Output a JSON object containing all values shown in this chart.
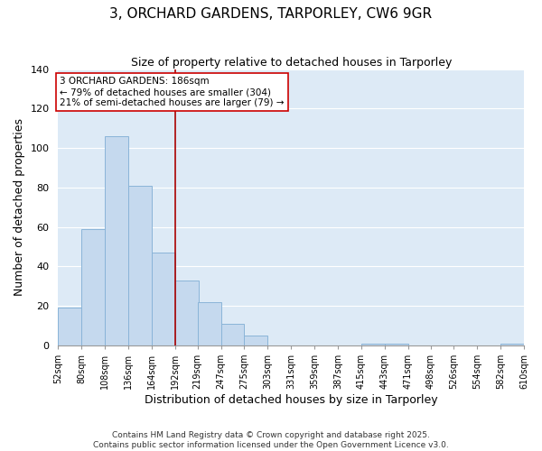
{
  "title": "3, ORCHARD GARDENS, TARPORLEY, CW6 9GR",
  "subtitle": "Size of property relative to detached houses in Tarporley",
  "xlabel": "Distribution of detached houses by size in Tarporley",
  "ylabel": "Number of detached properties",
  "bar_color": "#c5d9ee",
  "bar_edge_color": "#8ab4d8",
  "background_color": "#ddeaf6",
  "grid_color": "#ffffff",
  "bar_left_edges": [
    52,
    80,
    108,
    136,
    164,
    192,
    219,
    247,
    275,
    303,
    331,
    359,
    387,
    415,
    443,
    471,
    498,
    526,
    554,
    582
  ],
  "bar_heights": [
    19,
    59,
    106,
    81,
    47,
    33,
    22,
    11,
    5,
    0,
    0,
    0,
    0,
    1,
    1,
    0,
    0,
    0,
    0,
    1
  ],
  "bin_width": 28,
  "tick_labels": [
    "52sqm",
    "80sqm",
    "108sqm",
    "136sqm",
    "164sqm",
    "192sqm",
    "219sqm",
    "247sqm",
    "275sqm",
    "303sqm",
    "331sqm",
    "359sqm",
    "387sqm",
    "415sqm",
    "443sqm",
    "471sqm",
    "498sqm",
    "526sqm",
    "554sqm",
    "582sqm",
    "610sqm"
  ],
  "ylim": [
    0,
    140
  ],
  "yticks": [
    0,
    20,
    40,
    60,
    80,
    100,
    120,
    140
  ],
  "vline_x": 192,
  "vline_color": "#aa0000",
  "annotation_line1": "3 ORCHARD GARDENS: 186sqm",
  "annotation_line2": "← 79% of detached houses are smaller (304)",
  "annotation_line3": "21% of semi-detached houses are larger (79) →",
  "footer1": "Contains HM Land Registry data © Crown copyright and database right 2025.",
  "footer2": "Contains public sector information licensed under the Open Government Licence v3.0."
}
